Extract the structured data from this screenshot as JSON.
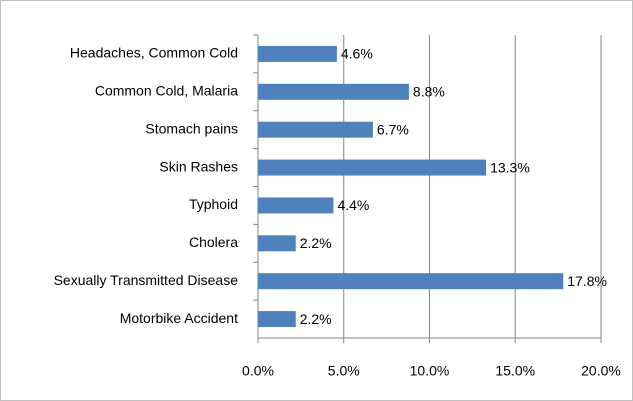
{
  "chart_data": {
    "type": "bar",
    "orientation": "horizontal",
    "categories": [
      "Headaches, Common Cold",
      "Common Cold,  Malaria",
      "Stomach pains",
      "Skin Rashes",
      "Typhoid",
      "Cholera",
      "Sexually Transmitted Disease",
      "Motorbike Accident"
    ],
    "values": [
      4.6,
      8.8,
      6.7,
      13.3,
      4.4,
      2.2,
      17.8,
      2.2
    ],
    "value_labels": [
      "4.6%",
      "8.8%",
      "6.7%",
      "13.3%",
      "4.4%",
      "2.2%",
      "17.8%",
      "2.2%"
    ],
    "color": "#4f81bd",
    "xlim": [
      0,
      20
    ],
    "xticks": [
      {
        "value": 0,
        "label": "0.0%"
      },
      {
        "value": 5,
        "label": "5.0%"
      },
      {
        "value": 10,
        "label": "10.0%"
      },
      {
        "value": 15,
        "label": "15.0%"
      },
      {
        "value": 20,
        "label": "20.0%"
      }
    ],
    "grid": true
  }
}
